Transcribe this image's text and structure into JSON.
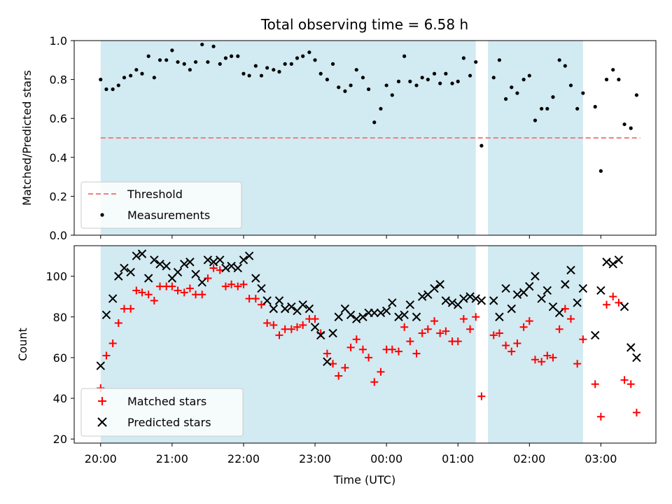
{
  "chart_data": {
    "title": "Total observing time = 6.58 h",
    "xlabel": "Time (UTC)",
    "x_ticks": [
      "20:00",
      "21:00",
      "22:00",
      "23:00",
      "00:00",
      "01:00",
      "02:00",
      "03:00"
    ],
    "x_tick_hours": [
      0,
      1,
      2,
      3,
      4,
      5,
      6,
      7
    ],
    "x_range_hours": [
      -0.37,
      7.77
    ],
    "shaded_intervals_hours": [
      [
        0.0,
        5.25
      ],
      [
        5.42,
        6.75
      ]
    ],
    "colors": {
      "shade": "#add8e6",
      "threshold": "#f08080",
      "matched": "#ff0000",
      "predicted": "#000000",
      "measurements": "#000000"
    },
    "panels": [
      {
        "type": "scatter",
        "ylabel": "Matched/Predicted stars",
        "ylim": [
          0,
          1.0
        ],
        "y_ticks": [
          "0.0",
          "0.2",
          "0.4",
          "0.6",
          "0.8",
          "1.0"
        ],
        "legend_placement": "lower-left",
        "threshold": {
          "name": "Threshold",
          "value": 0.5,
          "x_range_hours": [
            0,
            7.55
          ]
        },
        "series": [
          {
            "name": "Measurements",
            "x_hours": [
              0.0,
              0.08,
              0.17,
              0.25,
              0.33,
              0.42,
              0.5,
              0.58,
              0.67,
              0.75,
              0.83,
              0.92,
              1.0,
              1.08,
              1.17,
              1.25,
              1.33,
              1.42,
              1.5,
              1.58,
              1.67,
              1.75,
              1.83,
              1.92,
              2.0,
              2.08,
              2.17,
              2.25,
              2.33,
              2.42,
              2.5,
              2.58,
              2.67,
              2.75,
              2.83,
              2.92,
              3.0,
              3.08,
              3.17,
              3.25,
              3.33,
              3.42,
              3.5,
              3.58,
              3.67,
              3.75,
              3.83,
              3.92,
              4.0,
              4.08,
              4.17,
              4.25,
              4.33,
              4.42,
              4.5,
              4.58,
              4.67,
              4.75,
              4.83,
              4.92,
              5.0,
              5.08,
              5.17,
              5.25,
              5.33,
              5.5,
              5.58,
              5.67,
              5.75,
              5.83,
              5.92,
              6.0,
              6.08,
              6.17,
              6.25,
              6.33,
              6.42,
              6.5,
              6.58,
              6.67,
              6.75,
              6.92,
              7.0,
              7.08,
              7.17,
              7.25,
              7.33,
              7.42,
              7.5
            ],
            "y": [
              0.8,
              0.75,
              0.75,
              0.77,
              0.81,
              0.82,
              0.85,
              0.83,
              0.92,
              0.81,
              0.9,
              0.9,
              0.95,
              0.89,
              0.88,
              0.85,
              0.89,
              0.98,
              0.89,
              0.97,
              0.88,
              0.91,
              0.92,
              0.92,
              0.83,
              0.82,
              0.87,
              0.82,
              0.86,
              0.85,
              0.84,
              0.88,
              0.88,
              0.91,
              0.92,
              0.94,
              0.9,
              0.83,
              0.8,
              0.88,
              0.76,
              0.74,
              0.77,
              0.85,
              0.81,
              0.75,
              0.58,
              0.65,
              0.77,
              0.72,
              0.79,
              0.92,
              0.79,
              0.77,
              0.81,
              0.8,
              0.83,
              0.78,
              0.83,
              0.78,
              0.79,
              0.91,
              0.82,
              0.89,
              0.46,
              0.81,
              0.9,
              0.7,
              0.76,
              0.73,
              0.8,
              0.82,
              0.59,
              0.65,
              0.65,
              0.71,
              0.9,
              0.87,
              0.77,
              0.65,
              0.73,
              0.66,
              0.33,
              0.8,
              0.85,
              0.8,
              0.57,
              0.55,
              0.72
            ]
          }
        ]
      },
      {
        "type": "scatter",
        "ylabel": "Count",
        "ylim": [
          18,
          115
        ],
        "y_ticks": [
          "20",
          "40",
          "60",
          "80",
          "100"
        ],
        "y_tick_values": [
          20,
          40,
          60,
          80,
          100
        ],
        "legend_placement": "lower-left",
        "series": [
          {
            "name": "Matched stars",
            "marker": "plus",
            "x_hours": [
              0.0,
              0.08,
              0.17,
              0.25,
              0.33,
              0.42,
              0.5,
              0.58,
              0.67,
              0.75,
              0.83,
              0.92,
              1.0,
              1.08,
              1.17,
              1.25,
              1.33,
              1.42,
              1.5,
              1.58,
              1.67,
              1.75,
              1.83,
              1.92,
              2.0,
              2.08,
              2.17,
              2.25,
              2.33,
              2.42,
              2.5,
              2.58,
              2.67,
              2.75,
              2.83,
              2.92,
              3.0,
              3.08,
              3.17,
              3.25,
              3.33,
              3.42,
              3.5,
              3.58,
              3.67,
              3.75,
              3.83,
              3.92,
              4.0,
              4.08,
              4.17,
              4.25,
              4.33,
              4.42,
              4.5,
              4.58,
              4.67,
              4.75,
              4.83,
              4.92,
              5.0,
              5.08,
              5.17,
              5.25,
              5.33,
              5.5,
              5.58,
              5.67,
              5.75,
              5.83,
              5.92,
              6.0,
              6.08,
              6.17,
              6.25,
              6.33,
              6.42,
              6.5,
              6.58,
              6.67,
              6.75,
              6.92,
              7.0,
              7.08,
              7.17,
              7.25,
              7.33,
              7.42,
              7.5
            ],
            "y": [
              45,
              61,
              67,
              77,
              84,
              84,
              93,
              92,
              91,
              88,
              95,
              95,
              95,
              93,
              92,
              94,
              91,
              91,
              99,
              104,
              103,
              95,
              96,
              95,
              96,
              89,
              89,
              86,
              77,
              76,
              71,
              74,
              74,
              75,
              76,
              79,
              79,
              72,
              62,
              57,
              51,
              55,
              65,
              69,
              64,
              60,
              48,
              53,
              64,
              64,
              63,
              75,
              68,
              62,
              72,
              74,
              78,
              72,
              73,
              68,
              68,
              79,
              74,
              80,
              41,
              71,
              72,
              66,
              63,
              67,
              75,
              78,
              59,
              58,
              61,
              60,
              74,
              84,
              79,
              57,
              69,
              47,
              31,
              86,
              90,
              87,
              49,
              47,
              33
            ]
          },
          {
            "name": "Predicted stars",
            "marker": "x",
            "x_hours": [
              0.0,
              0.08,
              0.17,
              0.25,
              0.33,
              0.42,
              0.5,
              0.58,
              0.67,
              0.75,
              0.83,
              0.92,
              1.0,
              1.08,
              1.17,
              1.25,
              1.33,
              1.42,
              1.5,
              1.58,
              1.67,
              1.75,
              1.83,
              1.92,
              2.0,
              2.08,
              2.17,
              2.25,
              2.33,
              2.42,
              2.5,
              2.58,
              2.67,
              2.75,
              2.83,
              2.92,
              3.0,
              3.08,
              3.17,
              3.25,
              3.33,
              3.42,
              3.5,
              3.58,
              3.67,
              3.75,
              3.83,
              3.92,
              4.0,
              4.08,
              4.17,
              4.25,
              4.33,
              4.42,
              4.5,
              4.58,
              4.67,
              4.75,
              4.83,
              4.92,
              5.0,
              5.08,
              5.17,
              5.25,
              5.33,
              5.5,
              5.58,
              5.67,
              5.75,
              5.83,
              5.92,
              6.0,
              6.08,
              6.17,
              6.25,
              6.33,
              6.42,
              6.5,
              6.58,
              6.67,
              6.75,
              6.92,
              7.0,
              7.08,
              7.17,
              7.25,
              7.33,
              7.42,
              7.5
            ],
            "y": [
              56,
              81,
              89,
              100,
              104,
              102,
              110,
              111,
              99,
              108,
              106,
              105,
              99,
              102,
              106,
              107,
              101,
              97,
              108,
              107,
              108,
              104,
              105,
              104,
              108,
              110,
              99,
              94,
              88,
              84,
              88,
              84,
              85,
              83,
              86,
              84,
              75,
              71,
              58,
              72,
              80,
              84,
              81,
              79,
              80,
              82,
              82,
              82,
              83,
              87,
              80,
              81,
              86,
              80,
              90,
              91,
              94,
              96,
              88,
              87,
              86,
              89,
              90,
              89,
              88,
              88,
              80,
              94,
              84,
              91,
              92,
              95,
              100,
              89,
              93,
              85,
              82,
              96,
              103,
              87,
              94,
              71,
              93,
              107,
              106,
              108,
              85,
              65,
              60
            ]
          }
        ]
      }
    ]
  }
}
